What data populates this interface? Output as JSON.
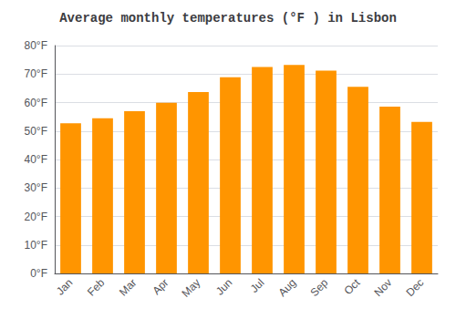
{
  "chart_data": {
    "type": "bar",
    "title": "Average monthly temperatures (°F ) in Lisbon",
    "categories": [
      "Jan",
      "Feb",
      "Mar",
      "Apr",
      "May",
      "Jun",
      "Jul",
      "Aug",
      "Sep",
      "Oct",
      "Nov",
      "Dec"
    ],
    "values": [
      52.7,
      54.5,
      57.0,
      59.9,
      63.7,
      68.9,
      72.5,
      73.2,
      71.2,
      65.5,
      58.6,
      53.2
    ],
    "color": "#FF9500",
    "ylim": [
      0,
      80
    ],
    "yticks": [
      {
        "value": 0,
        "label": "0°F"
      },
      {
        "value": 10,
        "label": "10°F"
      },
      {
        "value": 20,
        "label": "20°F"
      },
      {
        "value": 30,
        "label": "30°F"
      },
      {
        "value": 40,
        "label": "40°F"
      },
      {
        "value": 50,
        "label": "50°F"
      },
      {
        "value": 60,
        "label": "60°F"
      },
      {
        "value": 70,
        "label": "70°F"
      },
      {
        "value": 80,
        "label": "80°F"
      }
    ],
    "grid": true
  }
}
